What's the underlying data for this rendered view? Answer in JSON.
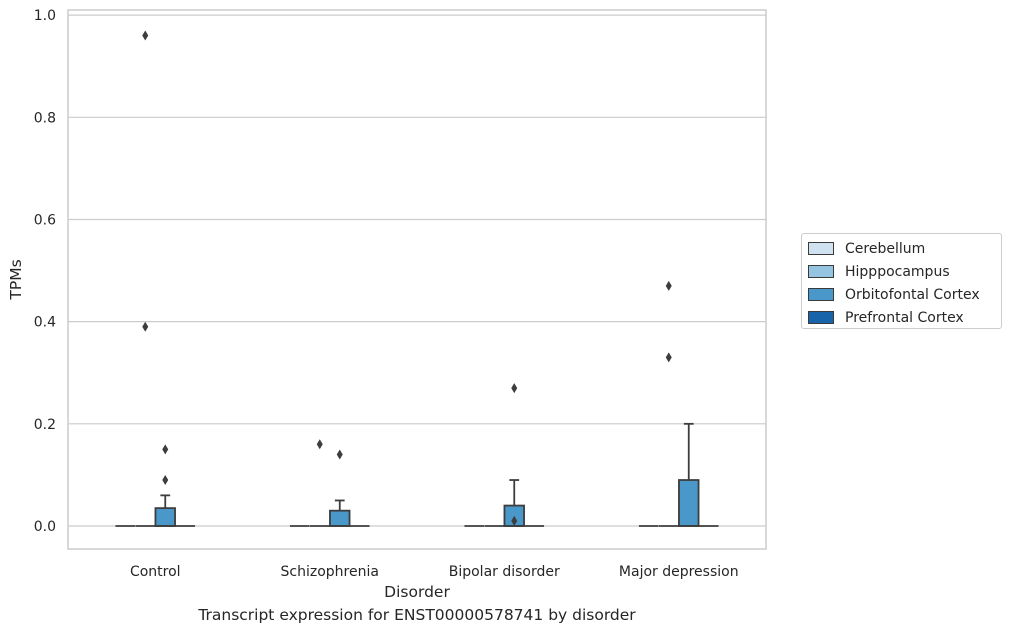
{
  "chart_data": {
    "type": "box",
    "xlabel": "Disorder",
    "ylabel": "TPMs",
    "caption": "Transcript expression for ENST00000578741 by disorder",
    "categories": [
      "Control",
      "Schizophrenia",
      "Bipolar disorder",
      "Major depression"
    ],
    "ylim": [
      -0.045,
      1.01
    ],
    "yticks": [
      0.0,
      0.2,
      0.4,
      0.6,
      0.8,
      1.0
    ],
    "ytick_labels": [
      "0.0",
      "0.2",
      "0.4",
      "0.6",
      "0.8",
      "1.0"
    ],
    "grid": "horizontal",
    "legend_position": "right",
    "series": [
      {
        "name": "Cerebellum",
        "color": "#d0e1f2",
        "boxes": [
          {
            "q1": 0,
            "median": 0,
            "q3": 0,
            "whisker_low": 0,
            "whisker_high": 0,
            "outliers": []
          },
          {
            "q1": 0,
            "median": 0,
            "q3": 0,
            "whisker_low": 0,
            "whisker_high": 0,
            "outliers": []
          },
          {
            "q1": 0,
            "median": 0,
            "q3": 0,
            "whisker_low": 0,
            "whisker_high": 0,
            "outliers": []
          },
          {
            "q1": 0,
            "median": 0,
            "q3": 0,
            "whisker_low": 0,
            "whisker_high": 0,
            "outliers": []
          }
        ]
      },
      {
        "name": "Hipppocampus",
        "color": "#94c4df",
        "boxes": [
          {
            "q1": 0,
            "median": 0,
            "q3": 0,
            "whisker_low": 0,
            "whisker_high": 0,
            "outliers": [
              0.96,
              0.39
            ]
          },
          {
            "q1": 0,
            "median": 0,
            "q3": 0,
            "whisker_low": 0,
            "whisker_high": 0,
            "outliers": [
              0.16
            ]
          },
          {
            "q1": 0,
            "median": 0,
            "q3": 0,
            "whisker_low": 0,
            "whisker_high": 0,
            "outliers": []
          },
          {
            "q1": 0,
            "median": 0,
            "q3": 0,
            "whisker_low": 0,
            "whisker_high": 0,
            "outliers": [
              0.47,
              0.33
            ]
          }
        ]
      },
      {
        "name": "Orbitofontal Cortex",
        "color": "#4a98c9",
        "boxes": [
          {
            "q1": 0,
            "median": 0,
            "q3": 0.035,
            "whisker_low": 0,
            "whisker_high": 0.06,
            "outliers": [
              0.15,
              0.09
            ]
          },
          {
            "q1": 0,
            "median": 0,
            "q3": 0.03,
            "whisker_low": 0,
            "whisker_high": 0.05,
            "outliers": [
              0.14
            ]
          },
          {
            "q1": 0,
            "median": 0,
            "q3": 0.04,
            "whisker_low": 0,
            "whisker_high": 0.09,
            "outliers": [
              0.27,
              0.01
            ]
          },
          {
            "q1": 0,
            "median": 0,
            "q3": 0.09,
            "whisker_low": 0,
            "whisker_high": 0.2,
            "outliers": []
          }
        ]
      },
      {
        "name": "Prefrontal Cortex",
        "color": "#1764ab",
        "boxes": [
          {
            "q1": 0,
            "median": 0,
            "q3": 0,
            "whisker_low": 0,
            "whisker_high": 0,
            "outliers": []
          },
          {
            "q1": 0,
            "median": 0,
            "q3": 0,
            "whisker_low": 0,
            "whisker_high": 0,
            "outliers": []
          },
          {
            "q1": 0,
            "median": 0,
            "q3": 0,
            "whisker_low": 0,
            "whisker_high": 0,
            "outliers": []
          },
          {
            "q1": 0,
            "median": 0,
            "q3": 0,
            "whisker_low": 0,
            "whisker_high": 0,
            "outliers": []
          }
        ]
      }
    ]
  }
}
